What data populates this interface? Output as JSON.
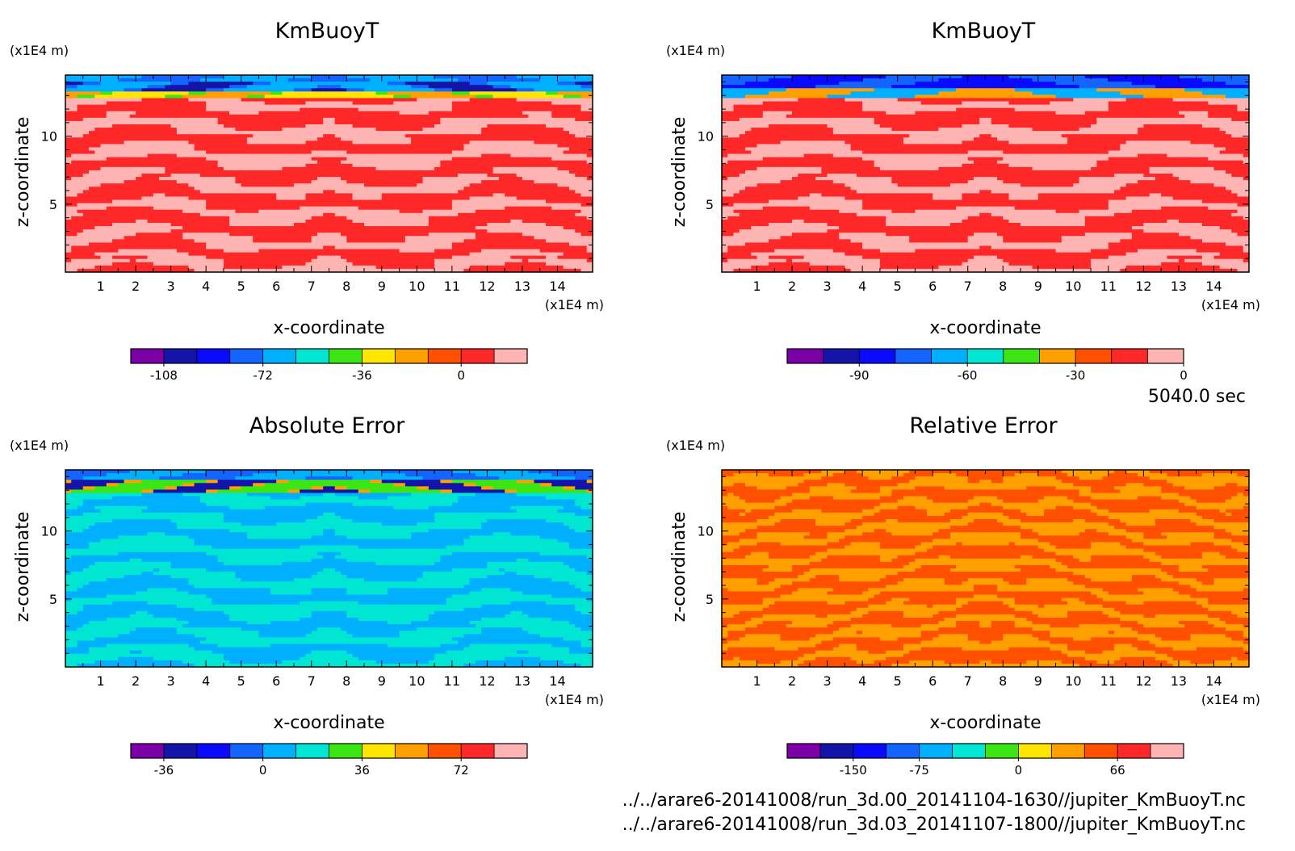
{
  "chart_data": [
    {
      "type": "heatmap",
      "title": "KmBuoyT",
      "xlabel": "x-coordinate",
      "ylabel": "z-coordinate",
      "x_unit": "(x1E4 m)",
      "y_unit": "(x1E4 m)",
      "xlim": [
        0,
        15
      ],
      "ylim": [
        0,
        14.5
      ],
      "x_ticks": [
        "1",
        "2",
        "3",
        "4",
        "5",
        "6",
        "7",
        "8",
        "9",
        "10",
        "11",
        "12",
        "13",
        "14"
      ],
      "y_ticks": [
        "5",
        "10"
      ],
      "colorbar": {
        "colors": [
          "#7b00a8",
          "#1414a8",
          "#0a0aff",
          "#1464ff",
          "#00b0ff",
          "#00e6d2",
          "#3ce614",
          "#ffe600",
          "#ffa000",
          "#ff5000",
          "#ff2828",
          "#ffb4b4"
        ],
        "tick_labels": [
          "-108",
          "-72",
          "-36",
          "0"
        ],
        "tick_index": [
          1,
          4,
          7,
          10
        ]
      },
      "pattern": "field"
    },
    {
      "type": "heatmap",
      "title": "KmBuoyT",
      "xlabel": "x-coordinate",
      "ylabel": "z-coordinate",
      "x_unit": "(x1E4 m)",
      "y_unit": "(x1E4 m)",
      "xlim": [
        0,
        15
      ],
      "ylim": [
        0,
        14.5
      ],
      "x_ticks": [
        "1",
        "2",
        "3",
        "4",
        "5",
        "6",
        "7",
        "8",
        "9",
        "10",
        "11",
        "12",
        "13",
        "14"
      ],
      "y_ticks": [
        "5",
        "10"
      ],
      "colorbar": {
        "colors": [
          "#7b00a8",
          "#1414a8",
          "#0a0aff",
          "#1464ff",
          "#00b0ff",
          "#00e6d2",
          "#3ce614",
          "#ffa000",
          "#ff5000",
          "#ff2828",
          "#ffb4b4"
        ],
        "tick_labels": [
          "-90",
          "-60",
          "-30",
          "0"
        ],
        "tick_index": [
          2,
          5,
          8,
          11
        ]
      },
      "pattern": "field2"
    },
    {
      "type": "heatmap",
      "title": "Absolute Error",
      "xlabel": "x-coordinate",
      "ylabel": "z-coordinate",
      "x_unit": "(x1E4 m)",
      "y_unit": "(x1E4 m)",
      "xlim": [
        0,
        15
      ],
      "ylim": [
        0,
        14.5
      ],
      "x_ticks": [
        "1",
        "2",
        "3",
        "4",
        "5",
        "6",
        "7",
        "8",
        "9",
        "10",
        "11",
        "12",
        "13",
        "14"
      ],
      "y_ticks": [
        "5",
        "10"
      ],
      "colorbar": {
        "colors": [
          "#7b00a8",
          "#1414a8",
          "#0a0aff",
          "#1464ff",
          "#00b0ff",
          "#00e6d2",
          "#3ce614",
          "#ffe600",
          "#ffa000",
          "#ff5000",
          "#ff2828",
          "#ffb4b4"
        ],
        "tick_labels": [
          "-36",
          "0",
          "36",
          "72"
        ],
        "tick_index": [
          1,
          4,
          7,
          10
        ]
      },
      "pattern": "abs"
    },
    {
      "type": "heatmap",
      "title": "Relative Error",
      "xlabel": "x-coordinate",
      "ylabel": "z-coordinate",
      "x_unit": "(x1E4 m)",
      "y_unit": "(x1E4 m)",
      "xlim": [
        0,
        15
      ],
      "ylim": [
        0,
        14.5
      ],
      "x_ticks": [
        "1",
        "2",
        "3",
        "4",
        "5",
        "6",
        "7",
        "8",
        "9",
        "10",
        "11",
        "12",
        "13",
        "14"
      ],
      "y_ticks": [
        "5",
        "10"
      ],
      "colorbar": {
        "colors": [
          "#7b00a8",
          "#1414a8",
          "#0a0aff",
          "#1464ff",
          "#00b0ff",
          "#00e6d2",
          "#3ce614",
          "#ffe600",
          "#ffa000",
          "#ff5000",
          "#ff2828",
          "#ffb4b4"
        ],
        "tick_labels": [
          "-150",
          "-75",
          "0",
          "66"
        ],
        "tick_index": [
          2,
          4,
          7,
          10
        ]
      },
      "pattern": "rel"
    }
  ],
  "info": {
    "time": "5040.0 sec",
    "file1": "../../arare6-20141008/run_3d.00_20141104-1630//jupiter_KmBuoyT.nc",
    "file2": "../../arare6-20141008/run_3d.03_20141107-1800//jupiter_KmBuoyT.nc"
  }
}
